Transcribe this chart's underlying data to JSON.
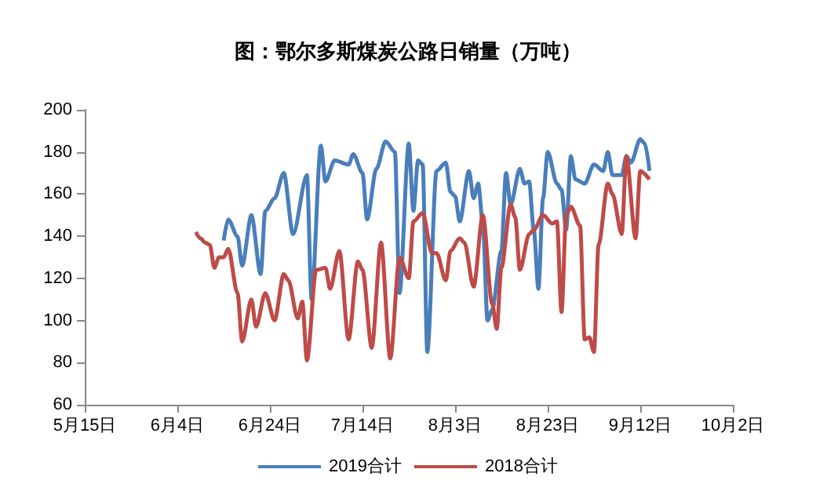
{
  "chart_data": {
    "type": "line",
    "title": "图：鄂尔多斯煤炭公路日销量（万吨）",
    "xlim": [
      "--05-15",
      "--10-02"
    ],
    "xticks": [
      {
        "value": "--05-15",
        "label": "5月15日"
      },
      {
        "value": "--06-04",
        "label": "6月4日"
      },
      {
        "value": "--06-24",
        "label": "6月24日"
      },
      {
        "value": "--07-14",
        "label": "7月14日"
      },
      {
        "value": "--08-03",
        "label": "8月3日"
      },
      {
        "value": "--08-23",
        "label": "8月23日"
      },
      {
        "value": "--09-12",
        "label": "9月12日"
      },
      {
        "value": "--10-02",
        "label": "10月2日"
      }
    ],
    "ylim": [
      60,
      200
    ],
    "yticks": [
      60,
      80,
      100,
      120,
      140,
      160,
      180,
      200
    ],
    "grid": false,
    "legend": "bottom",
    "marker": "none",
    "line_style": "solid",
    "series": [
      {
        "name": "2019合计",
        "color": "#4a7ebb",
        "x": [
          "--06-14",
          "--06-15",
          "--06-17",
          "--06-18",
          "--06-20",
          "--06-22",
          "--06-23",
          "--06-25",
          "--06-27",
          "--06-29",
          "--07-02",
          "--07-03",
          "--07-05",
          "--07-06",
          "--07-08",
          "--07-11",
          "--07-12",
          "--07-14",
          "--07-15",
          "--07-17",
          "--07-19",
          "--07-21",
          "--07-22",
          "--07-24",
          "--07-25",
          "--07-26",
          "--07-27",
          "--07-28",
          "--07-30",
          "--08-01",
          "--08-02",
          "--08-03",
          "--08-04",
          "--08-06",
          "--08-07",
          "--08-08",
          "--08-09",
          "--08-10",
          "--08-11",
          "--08-13",
          "--08-14",
          "--08-15",
          "--08-17",
          "--08-18",
          "--08-19",
          "--08-20",
          "--08-21",
          "--08-22",
          "--08-23",
          "--08-25",
          "--08-26",
          "--08-27",
          "--08-28",
          "--08-29",
          "--08-31",
          "--09-02",
          "--09-04",
          "--09-05",
          "--09-06",
          "--09-08",
          "--09-09",
          "--09-10",
          "--09-12",
          "--09-13",
          "--09-14"
        ],
        "values": [
          138,
          148,
          140,
          126,
          150,
          122,
          152,
          158,
          170,
          141,
          169,
          110,
          183,
          166,
          176,
          174,
          179,
          170,
          148,
          172,
          185,
          180,
          113,
          184,
          152,
          176,
          174,
          85,
          171,
          175,
          161,
          159,
          147,
          171,
          158,
          165,
          146,
          100,
          105,
          133,
          170,
          155,
          172,
          165,
          166,
          143,
          115,
          158,
          180,
          165,
          162,
          143,
          178,
          167,
          165,
          174,
          171,
          180,
          169,
          169,
          178,
          175,
          186,
          184,
          171
        ]
      },
      {
        "name": "2018合计",
        "color": "#be4b48",
        "x": [
          "--06-08",
          "--06-09",
          "--06-10",
          "--06-11",
          "--06-12",
          "--06-13",
          "--06-14",
          "--06-15",
          "--06-17",
          "--06-18",
          "--06-20",
          "--06-21",
          "--06-23",
          "--06-25",
          "--06-27",
          "--06-28",
          "--06-30",
          "--07-01",
          "--07-02",
          "--07-04",
          "--07-06",
          "--07-07",
          "--07-09",
          "--07-11",
          "--07-13",
          "--07-14",
          "--07-16",
          "--07-18",
          "--07-20",
          "--07-22",
          "--07-24",
          "--07-25",
          "--07-27",
          "--07-29",
          "--07-30",
          "--08-01",
          "--08-02",
          "--08-04",
          "--08-05",
          "--08-07",
          "--08-09",
          "--08-11",
          "--08-12",
          "--08-13",
          "--08-15",
          "--08-16",
          "--08-17",
          "--08-19",
          "--08-20",
          "--08-22",
          "--08-24",
          "--08-25",
          "--08-26",
          "--08-27",
          "--08-28",
          "--08-30",
          "--08-31",
          "--09-01",
          "--09-02",
          "--09-03",
          "--09-05",
          "--09-06",
          "--09-08",
          "--09-09",
          "--09-11",
          "--09-12",
          "--09-14"
        ],
        "values": [
          142,
          139,
          137,
          136,
          125,
          130,
          130,
          134,
          113,
          90,
          110,
          97,
          113,
          100,
          122,
          119,
          101,
          109,
          81,
          124,
          125,
          115,
          133,
          91,
          128,
          124,
          87,
          137,
          82,
          130,
          120,
          147,
          151,
          132,
          132,
          119,
          133,
          139,
          137,
          116,
          150,
          108,
          96,
          125,
          155,
          149,
          124,
          141,
          143,
          150,
          146,
          147,
          104,
          150,
          154,
          145,
          91,
          92,
          85,
          136,
          165,
          160,
          141,
          178,
          139,
          171,
          167
        ]
      }
    ]
  }
}
